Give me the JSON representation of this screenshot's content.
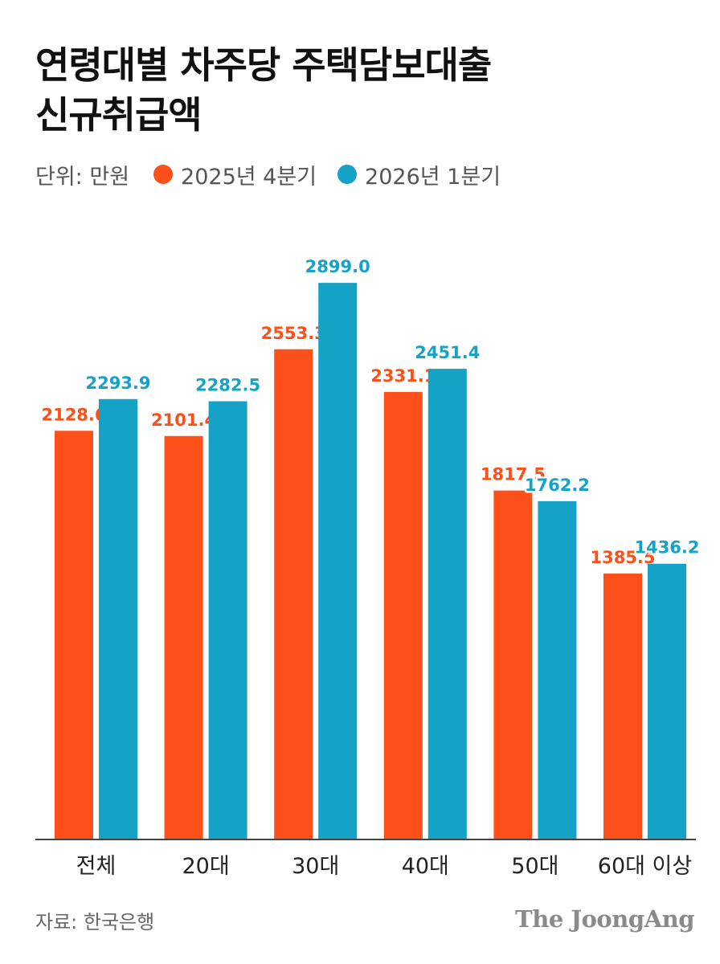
{
  "title_lines": [
    "연령대별 차주당 주택담보대출",
    "신규취급액"
  ],
  "unit_label": "단위: 만원",
  "legend": [
    {
      "label": "2025년 4분기",
      "color": "#fc4f1a"
    },
    {
      "label": "2026년 1분기",
      "color": "#14a3c7"
    }
  ],
  "source": "자료: 한국은행",
  "logo": "The JoongAng",
  "chart_data": {
    "type": "bar",
    "categories": [
      "전체",
      "20대",
      "30대",
      "40대",
      "50대",
      "60대 이상"
    ],
    "series": [
      {
        "name": "2025년 4분기",
        "color": "#fc4f1a",
        "values": [
          2128.6,
          2101.4,
          2553.3,
          2331.1,
          1817.5,
          1385.5
        ]
      },
      {
        "name": "2026년 1분기",
        "color": "#14a3c7",
        "values": [
          2293.9,
          2282.5,
          2899.0,
          2451.4,
          1762.2,
          1436.2
        ]
      }
    ],
    "data_labels": [
      [
        "2128.6",
        "2101.4",
        "2553.3",
        "2331.1",
        "1817.5",
        "1385.5"
      ],
      [
        "2293.9",
        "2282.5",
        "2899.0",
        "2451.4",
        "1762.2",
        "1436.2"
      ]
    ],
    "ylim": [
      0,
      3000
    ],
    "grid": false,
    "legend_position": "top-left"
  }
}
